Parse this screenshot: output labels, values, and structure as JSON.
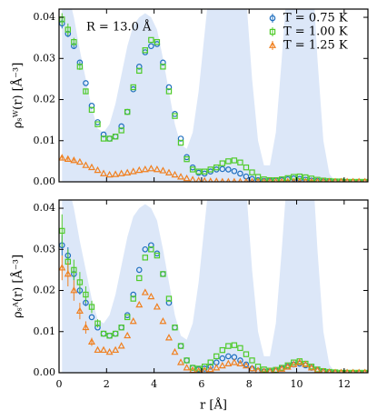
{
  "chart_data": [
    {
      "type": "scatter",
      "annotation": "R = 13.0 Å",
      "ylabel": "ρₛᵂ(r) [Å⁻³]",
      "legend": "upper right",
      "xtick_labels": false,
      "xlim": [
        0,
        13
      ],
      "xticks": [
        0,
        2,
        4,
        6,
        8,
        10,
        12
      ],
      "ylim": [
        0,
        0.042
      ],
      "yticks": [
        {
          "value": 0,
          "label": "0.00"
        },
        {
          "value": 0.01,
          "label": "0.01"
        },
        {
          "value": 0.02,
          "label": "0.02"
        },
        {
          "value": 0.03,
          "label": "0.03"
        },
        {
          "value": 0.04,
          "label": "0.04"
        }
      ],
      "x": [
        0.125,
        0.375,
        0.625,
        0.875,
        1.125,
        1.375,
        1.625,
        1.875,
        2.125,
        2.375,
        2.625,
        2.875,
        3.125,
        3.375,
        3.625,
        3.875,
        4.125,
        4.375,
        4.625,
        4.875,
        5.125,
        5.375,
        5.625,
        5.875,
        6.125,
        6.375,
        6.625,
        6.875,
        7.125,
        7.375,
        7.625,
        7.875,
        8.125,
        8.375,
        8.625,
        8.875,
        9.125,
        9.375,
        9.625,
        9.875,
        10.125,
        10.375,
        10.625,
        10.875,
        11.125,
        11.375,
        11.625,
        11.875,
        12.125,
        12.375,
        12.625,
        12.875
      ],
      "background": {
        "color": "#dce7f8",
        "values": [
          0.048,
          0.046,
          0.04,
          0.032,
          0.025,
          0.018,
          0.013,
          0.012,
          0.014,
          0.019,
          0.026,
          0.033,
          0.038,
          0.04,
          0.041,
          0.04,
          0.037,
          0.03,
          0.022,
          0.014,
          0.009,
          0.008,
          0.012,
          0.022,
          0.036,
          0.05,
          0.065,
          0.075,
          0.078,
          0.075,
          0.062,
          0.045,
          0.025,
          0.01,
          0.004,
          0.004,
          0.012,
          0.03,
          0.05,
          0.068,
          0.075,
          0.07,
          0.055,
          0.03,
          0.01,
          0.002,
          0,
          0,
          0,
          0,
          0,
          0
        ]
      },
      "series": [
        {
          "name": "T = 0.75 K",
          "color": "#1f6fbf",
          "marker": "o",
          "values": [
            0.0385,
            0.036,
            0.033,
            0.029,
            0.024,
            0.0185,
            0.0145,
            0.0115,
            0.0105,
            0.011,
            0.0135,
            0.017,
            0.0225,
            0.028,
            0.0315,
            0.033,
            0.0335,
            0.029,
            0.023,
            0.0165,
            0.0105,
            0.006,
            0.0035,
            0.0022,
            0.002,
            0.0025,
            0.003,
            0.0031,
            0.003,
            0.0026,
            0.002,
            0.0013,
            0.0007,
            0.0004,
            0.0002,
            0.0002,
            0.0003,
            0.0004,
            0.0006,
            0.0008,
            0.0007,
            0.0005,
            0.0003,
            0.0002,
            0.0001,
            0.0001,
            0,
            0,
            0,
            0,
            0,
            0
          ],
          "errors": [
            0.0012,
            0.0008,
            0.0005,
            0.0003,
            0,
            0,
            0,
            0,
            0,
            0,
            0,
            0,
            0,
            0,
            0,
            0,
            0,
            0,
            0,
            0,
            0,
            0,
            0,
            0,
            0,
            0,
            0,
            0,
            0,
            0,
            0,
            0,
            0,
            0,
            0,
            0,
            0,
            0,
            0,
            0,
            0,
            0,
            0,
            0,
            0,
            0,
            0,
            0,
            0,
            0,
            0,
            0
          ]
        },
        {
          "name": "T = 1.00 K",
          "color": "#4fcb2a",
          "marker": "s",
          "values": [
            0.0395,
            0.037,
            0.034,
            0.028,
            0.022,
            0.0175,
            0.014,
            0.0105,
            0.0105,
            0.011,
            0.0125,
            0.017,
            0.023,
            0.027,
            0.032,
            0.0345,
            0.034,
            0.028,
            0.022,
            0.016,
            0.0095,
            0.0055,
            0.003,
            0.0025,
            0.0025,
            0.003,
            0.0035,
            0.0045,
            0.005,
            0.0052,
            0.0047,
            0.0035,
            0.0023,
            0.0012,
            0.0006,
            0.0004,
            0.0004,
            0.0006,
            0.0009,
            0.0012,
            0.0013,
            0.0011,
            0.0008,
            0.0005,
            0.0003,
            0.0002,
            0.0001,
            0.0001,
            0,
            0,
            0,
            0
          ],
          "errors": [
            0.0015,
            0.0015,
            0.001,
            0.0008,
            0.0005,
            0,
            0,
            0,
            0,
            0,
            0,
            0,
            0,
            0,
            0,
            0,
            0,
            0,
            0,
            0,
            0,
            0,
            0,
            0,
            0,
            0,
            0,
            0,
            0,
            0,
            0,
            0,
            0,
            0,
            0,
            0,
            0,
            0,
            0,
            0,
            0,
            0,
            0,
            0,
            0,
            0,
            0,
            0,
            0,
            0,
            0,
            0
          ]
        },
        {
          "name": "T = 1.25 K",
          "color": "#f08020",
          "marker": "^",
          "values": [
            0.0058,
            0.0055,
            0.0052,
            0.0048,
            0.004,
            0.0035,
            0.0028,
            0.002,
            0.0017,
            0.0018,
            0.002,
            0.0022,
            0.0025,
            0.0028,
            0.003,
            0.0032,
            0.003,
            0.0027,
            0.0022,
            0.0017,
            0.0012,
            0.0008,
            0.0005,
            0.0003,
            0.0002,
            0.0001,
            0.0001,
            0,
            0,
            0,
            0,
            0,
            0,
            0,
            0,
            0,
            0,
            0,
            0,
            0,
            0,
            0,
            0,
            0,
            0,
            0,
            0,
            0,
            0,
            0,
            0,
            0
          ],
          "errors": [
            0.0005,
            0.0004,
            0.0003,
            0,
            0,
            0,
            0,
            0,
            0,
            0,
            0,
            0,
            0,
            0,
            0,
            0,
            0,
            0,
            0,
            0,
            0,
            0,
            0,
            0,
            0,
            0,
            0,
            0,
            0,
            0,
            0,
            0,
            0,
            0,
            0,
            0,
            0,
            0,
            0,
            0,
            0,
            0,
            0,
            0,
            0,
            0,
            0,
            0,
            0,
            0,
            0,
            0
          ]
        }
      ]
    },
    {
      "type": "scatter",
      "ylabel": "ρₛᴬ(r) [Å⁻³]",
      "xlabel": "r [Å]",
      "xtick_labels": true,
      "xlim": [
        0,
        13
      ],
      "xticks": [
        0,
        2,
        4,
        6,
        8,
        10,
        12
      ],
      "ylim": [
        0,
        0.042
      ],
      "yticks": [
        {
          "value": 0,
          "label": "0.00"
        },
        {
          "value": 0.01,
          "label": "0.01"
        },
        {
          "value": 0.02,
          "label": "0.02"
        },
        {
          "value": 0.03,
          "label": "0.03"
        },
        {
          "value": 0.04,
          "label": "0.04"
        }
      ],
      "x": [
        0.125,
        0.375,
        0.625,
        0.875,
        1.125,
        1.375,
        1.625,
        1.875,
        2.125,
        2.375,
        2.625,
        2.875,
        3.125,
        3.375,
        3.625,
        3.875,
        4.125,
        4.375,
        4.625,
        4.875,
        5.125,
        5.375,
        5.625,
        5.875,
        6.125,
        6.375,
        6.625,
        6.875,
        7.125,
        7.375,
        7.625,
        7.875,
        8.125,
        8.375,
        8.625,
        8.875,
        9.125,
        9.375,
        9.625,
        9.875,
        10.125,
        10.375,
        10.625,
        10.875,
        11.125,
        11.375,
        11.625,
        11.875,
        12.125,
        12.375,
        12.625,
        12.875
      ],
      "background": {
        "color": "#dce7f8",
        "values": [
          0.048,
          0.046,
          0.04,
          0.032,
          0.025,
          0.018,
          0.013,
          0.012,
          0.014,
          0.019,
          0.026,
          0.033,
          0.038,
          0.04,
          0.041,
          0.04,
          0.037,
          0.03,
          0.022,
          0.014,
          0.009,
          0.008,
          0.012,
          0.022,
          0.036,
          0.05,
          0.065,
          0.075,
          0.078,
          0.075,
          0.062,
          0.045,
          0.025,
          0.01,
          0.004,
          0.004,
          0.012,
          0.03,
          0.05,
          0.068,
          0.075,
          0.07,
          0.055,
          0.03,
          0.01,
          0.002,
          0,
          0,
          0,
          0,
          0,
          0
        ]
      },
      "series": [
        {
          "color": "#1f6fbf",
          "marker": "o",
          "values": [
            0.031,
            0.0285,
            0.024,
            0.02,
            0.017,
            0.0135,
            0.011,
            0.0095,
            0.009,
            0.0095,
            0.011,
            0.014,
            0.019,
            0.025,
            0.03,
            0.031,
            0.029,
            0.024,
            0.017,
            0.011,
            0.0065,
            0.003,
            0.0012,
            0.0008,
            0.001,
            0.0015,
            0.0025,
            0.0035,
            0.004,
            0.0038,
            0.003,
            0.002,
            0.001,
            0.0005,
            0.0003,
            0.0003,
            0.0005,
            0.001,
            0.0015,
            0.002,
            0.0022,
            0.0018,
            0.0012,
            0.0006,
            0.0003,
            0.0001,
            0,
            0,
            0,
            0,
            0,
            0
          ],
          "errors": [
            0.0025,
            0.002,
            0.0015,
            0.001,
            0.0008,
            0,
            0,
            0,
            0,
            0,
            0,
            0,
            0,
            0,
            0,
            0,
            0,
            0,
            0,
            0,
            0,
            0,
            0,
            0,
            0,
            0,
            0,
            0,
            0,
            0,
            0,
            0,
            0,
            0,
            0,
            0,
            0,
            0,
            0,
            0,
            0,
            0,
            0,
            0,
            0,
            0,
            0,
            0,
            0,
            0,
            0,
            0
          ]
        },
        {
          "color": "#4fcb2a",
          "marker": "s",
          "values": [
            0.0345,
            0.027,
            0.025,
            0.022,
            0.019,
            0.016,
            0.012,
            0.0095,
            0.009,
            0.0095,
            0.011,
            0.0135,
            0.018,
            0.023,
            0.028,
            0.03,
            0.0285,
            0.024,
            0.018,
            0.011,
            0.0065,
            0.003,
            0.0012,
            0.001,
            0.0015,
            0.0025,
            0.004,
            0.0055,
            0.0065,
            0.0067,
            0.006,
            0.0045,
            0.003,
            0.0015,
            0.0008,
            0.0005,
            0.0007,
            0.0012,
            0.0018,
            0.0025,
            0.0028,
            0.0022,
            0.0015,
            0.0008,
            0.0004,
            0.0002,
            0.0001,
            0,
            0,
            0,
            0,
            0
          ],
          "errors": [
            0.004,
            0.003,
            0.0025,
            0.0025,
            0.002,
            0.0015,
            0.001,
            0,
            0,
            0,
            0,
            0,
            0,
            0,
            0,
            0,
            0,
            0,
            0,
            0,
            0,
            0,
            0,
            0,
            0,
            0,
            0,
            0,
            0,
            0,
            0,
            0,
            0,
            0,
            0,
            0,
            0,
            0,
            0,
            0,
            0,
            0,
            0,
            0,
            0,
            0,
            0,
            0,
            0,
            0,
            0,
            0
          ]
        },
        {
          "color": "#f08020",
          "marker": "^",
          "values": [
            0.0255,
            0.024,
            0.02,
            0.015,
            0.011,
            0.0075,
            0.0055,
            0.0055,
            0.005,
            0.0055,
            0.0065,
            0.009,
            0.0125,
            0.0165,
            0.0195,
            0.0185,
            0.016,
            0.0125,
            0.0085,
            0.005,
            0.0025,
            0.0012,
            0.0006,
            0.0004,
            0.0005,
            0.0008,
            0.0012,
            0.0017,
            0.0022,
            0.0025,
            0.0022,
            0.0017,
            0.001,
            0.0005,
            0.0003,
            0.0003,
            0.0005,
            0.0009,
            0.0014,
            0.002,
            0.0025,
            0.002,
            0.0012,
            0.0006,
            0.0002,
            0.0001,
            0,
            0,
            0,
            0,
            0,
            0
          ],
          "errors": [
            0.003,
            0.003,
            0.0025,
            0.002,
            0.0015,
            0.001,
            0,
            0,
            0,
            0,
            0,
            0,
            0,
            0,
            0,
            0,
            0,
            0,
            0,
            0,
            0,
            0,
            0,
            0,
            0,
            0,
            0,
            0,
            0,
            0,
            0,
            0,
            0,
            0,
            0,
            0,
            0,
            0,
            0,
            0,
            0,
            0,
            0,
            0,
            0,
            0,
            0,
            0,
            0,
            0,
            0,
            0
          ]
        }
      ]
    }
  ]
}
